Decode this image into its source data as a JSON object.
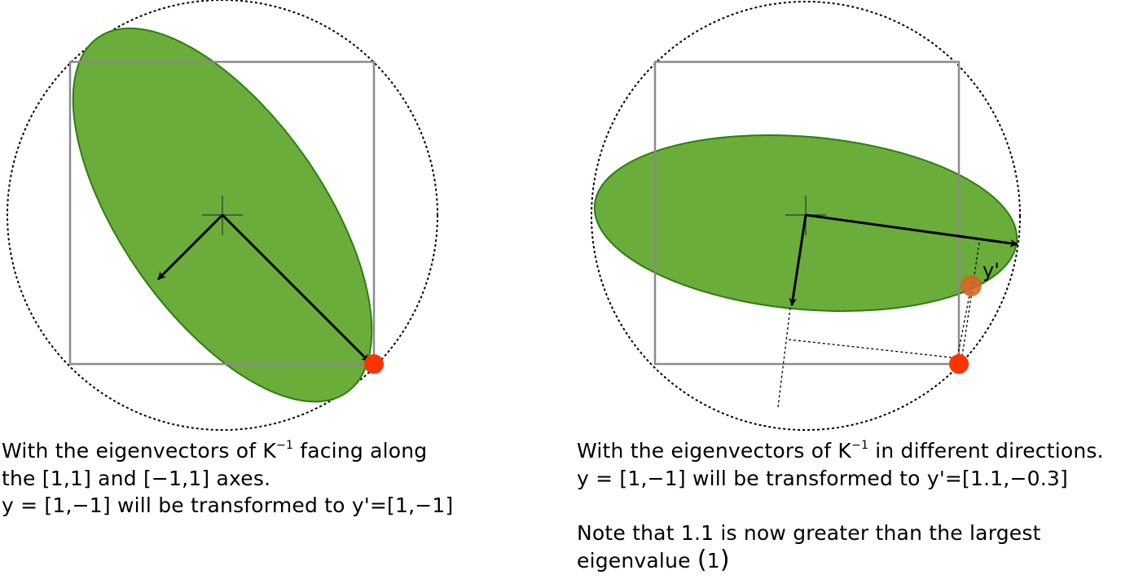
{
  "left_panel": {
    "caption": {
      "line1_before": "With the eigenvectors of K",
      "line1_sup": "−1",
      "line1_after": " facing along",
      "line2": "the [1,1] and [−1,1] axes.",
      "line3": "y = [1,−1] will be transformed to y'=[1,−1]"
    }
  },
  "right_panel": {
    "label_y_prime": "y'",
    "caption": {
      "line1_before": "With the eigenvectors of K",
      "line1_sup": "−1",
      "line1_after": " in different directions.",
      "line2": "y = [1,−1] will be transformed to y'=[1.1,−0.3]",
      "line3": "Note that 1.1 is now greater than the largest",
      "line4_before": "eigenvalue ",
      "line4_paren_open": "(",
      "line4_value": "1",
      "line4_paren_close": ")"
    }
  },
  "colors": {
    "ellipse_fill": "#6aad3a",
    "ellipse_stroke": "#2e7d12",
    "square": "#8a8a8a",
    "point": "#ff3300",
    "transformed_point": "#d9662a"
  }
}
